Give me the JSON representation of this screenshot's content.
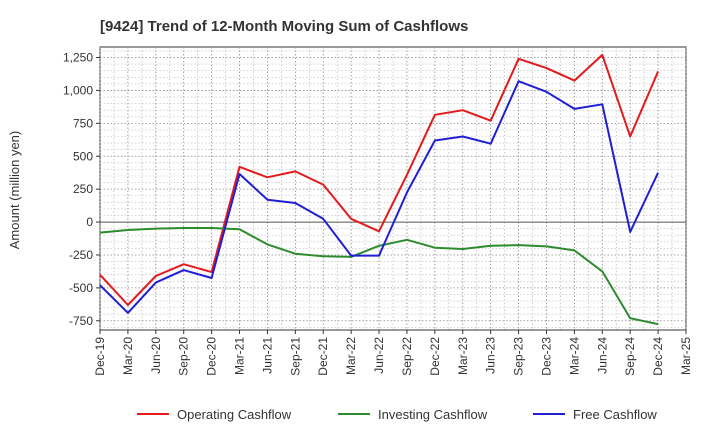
{
  "chart_data": {
    "type": "line",
    "title": "[9424]  Trend of 12-Month Moving Sum of Cashflows",
    "ylabel": "Amount (million yen)",
    "xlabel": "",
    "ylim": [
      -820,
      1330
    ],
    "yticks": [
      -750,
      -500,
      -250,
      0,
      250,
      500,
      750,
      1000,
      1250
    ],
    "ytick_labels": [
      "-750",
      "-500",
      "-250",
      "0",
      "250",
      "500",
      "750",
      "1,000",
      "1,250"
    ],
    "categories": [
      "Dec-19",
      "Mar-20",
      "Jun-20",
      "Sep-20",
      "Dec-20",
      "Mar-21",
      "Jun-21",
      "Sep-21",
      "Dec-21",
      "Mar-22",
      "Jun-22",
      "Sep-22",
      "Dec-22",
      "Mar-23",
      "Jun-23",
      "Sep-23",
      "Dec-23",
      "Mar-24",
      "Jun-24",
      "Sep-24",
      "Dec-24",
      "Mar-25"
    ],
    "grid": true,
    "legend_position": "bottom",
    "series": [
      {
        "name": "Operating Cashflow",
        "color": "#e41a1c",
        "values": [
          -400,
          -630,
          -410,
          -320,
          -380,
          420,
          340,
          385,
          285,
          25,
          -70,
          360,
          815,
          850,
          770,
          1240,
          1170,
          1075,
          1270,
          650,
          1145,
          null
        ]
      },
      {
        "name": "Investing Cashflow",
        "color": "#2e8b2e",
        "values": [
          -80,
          -60,
          -50,
          -45,
          -45,
          -55,
          -170,
          -240,
          -260,
          -265,
          -180,
          -135,
          -195,
          -205,
          -180,
          -175,
          -185,
          -215,
          -375,
          -730,
          -775,
          null
        ]
      },
      {
        "name": "Free Cashflow",
        "color": "#1f1fd6",
        "values": [
          -480,
          -690,
          -460,
          -365,
          -425,
          365,
          170,
          145,
          25,
          -255,
          -255,
          225,
          620,
          650,
          595,
          1070,
          990,
          860,
          895,
          -75,
          375,
          null
        ]
      }
    ]
  }
}
